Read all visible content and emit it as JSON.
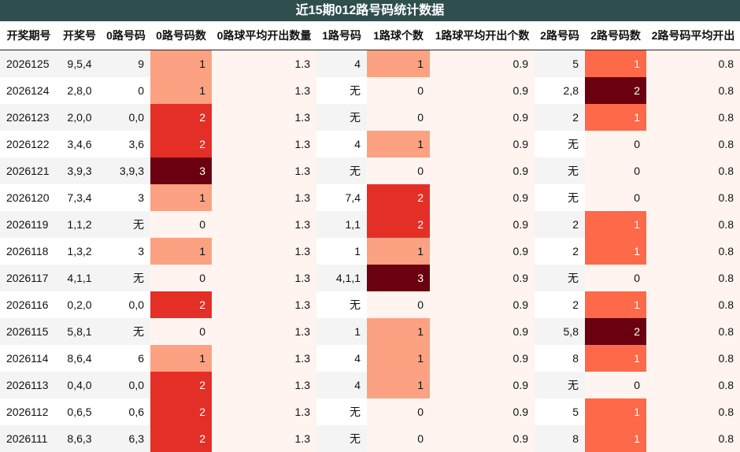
{
  "title": "近15期012路号码统计数据",
  "headers": [
    "开奖期号",
    "开奖号",
    "0路号码",
    "0路号码数",
    "0路球平均开出数量",
    "1路号码",
    "1路球个数",
    "1路球平均开出个数",
    "2路号码",
    "2路号码数",
    "2路号码平均开出"
  ],
  "rows": [
    [
      "2026125",
      "9,5,4",
      "9",
      "1",
      "1.3",
      "4",
      "1",
      "0.9",
      "5",
      "1",
      "0.8"
    ],
    [
      "2026124",
      "2,8,0",
      "0",
      "1",
      "1.3",
      "无",
      "0",
      "0.9",
      "2,8",
      "2",
      "0.8"
    ],
    [
      "2026123",
      "2,0,0",
      "0,0",
      "2",
      "1.3",
      "无",
      "0",
      "0.9",
      "2",
      "1",
      "0.8"
    ],
    [
      "2026122",
      "3,4,6",
      "3,6",
      "2",
      "1.3",
      "4",
      "1",
      "0.9",
      "无",
      "0",
      "0.8"
    ],
    [
      "2026121",
      "3,9,3",
      "3,9,3",
      "3",
      "1.3",
      "无",
      "0",
      "0.9",
      "无",
      "0",
      "0.8"
    ],
    [
      "2026120",
      "7,3,4",
      "3",
      "1",
      "1.3",
      "7,4",
      "2",
      "0.9",
      "无",
      "0",
      "0.8"
    ],
    [
      "2026119",
      "1,1,2",
      "无",
      "0",
      "1.3",
      "1,1",
      "2",
      "0.9",
      "2",
      "1",
      "0.8"
    ],
    [
      "2026118",
      "1,3,2",
      "3",
      "1",
      "1.3",
      "1",
      "1",
      "0.9",
      "2",
      "1",
      "0.8"
    ],
    [
      "2026117",
      "4,1,1",
      "无",
      "0",
      "1.3",
      "4,1,1",
      "3",
      "0.9",
      "无",
      "0",
      "0.8"
    ],
    [
      "2026116",
      "0,2,0",
      "0,0",
      "2",
      "1.3",
      "无",
      "0",
      "0.9",
      "2",
      "1",
      "0.8"
    ],
    [
      "2026115",
      "5,8,1",
      "无",
      "0",
      "1.3",
      "1",
      "1",
      "0.9",
      "5,8",
      "2",
      "0.8"
    ],
    [
      "2026114",
      "8,6,4",
      "6",
      "1",
      "1.3",
      "4",
      "1",
      "0.9",
      "8",
      "1",
      "0.8"
    ],
    [
      "2026113",
      "0,4,0",
      "0,0",
      "2",
      "1.3",
      "4",
      "1",
      "0.9",
      "无",
      "0",
      "0.8"
    ],
    [
      "2026112",
      "0,6,5",
      "0,6",
      "2",
      "1.3",
      "无",
      "0",
      "0.9",
      "5",
      "1",
      "0.8"
    ],
    [
      "2026111",
      "8,6,3",
      "6,3",
      "2",
      "1.3",
      "无",
      "0",
      "0.9",
      "8",
      "1",
      "0.8"
    ]
  ],
  "colors": {
    "title_bg": "#2f4f4f",
    "count_0": "#fff4ef",
    "count_1": "#fca283",
    "count_2": "#e42f27",
    "count_3": "#6a0010",
    "col9_count_1": "#fd6949",
    "col9_count_2": "#6a0010"
  }
}
